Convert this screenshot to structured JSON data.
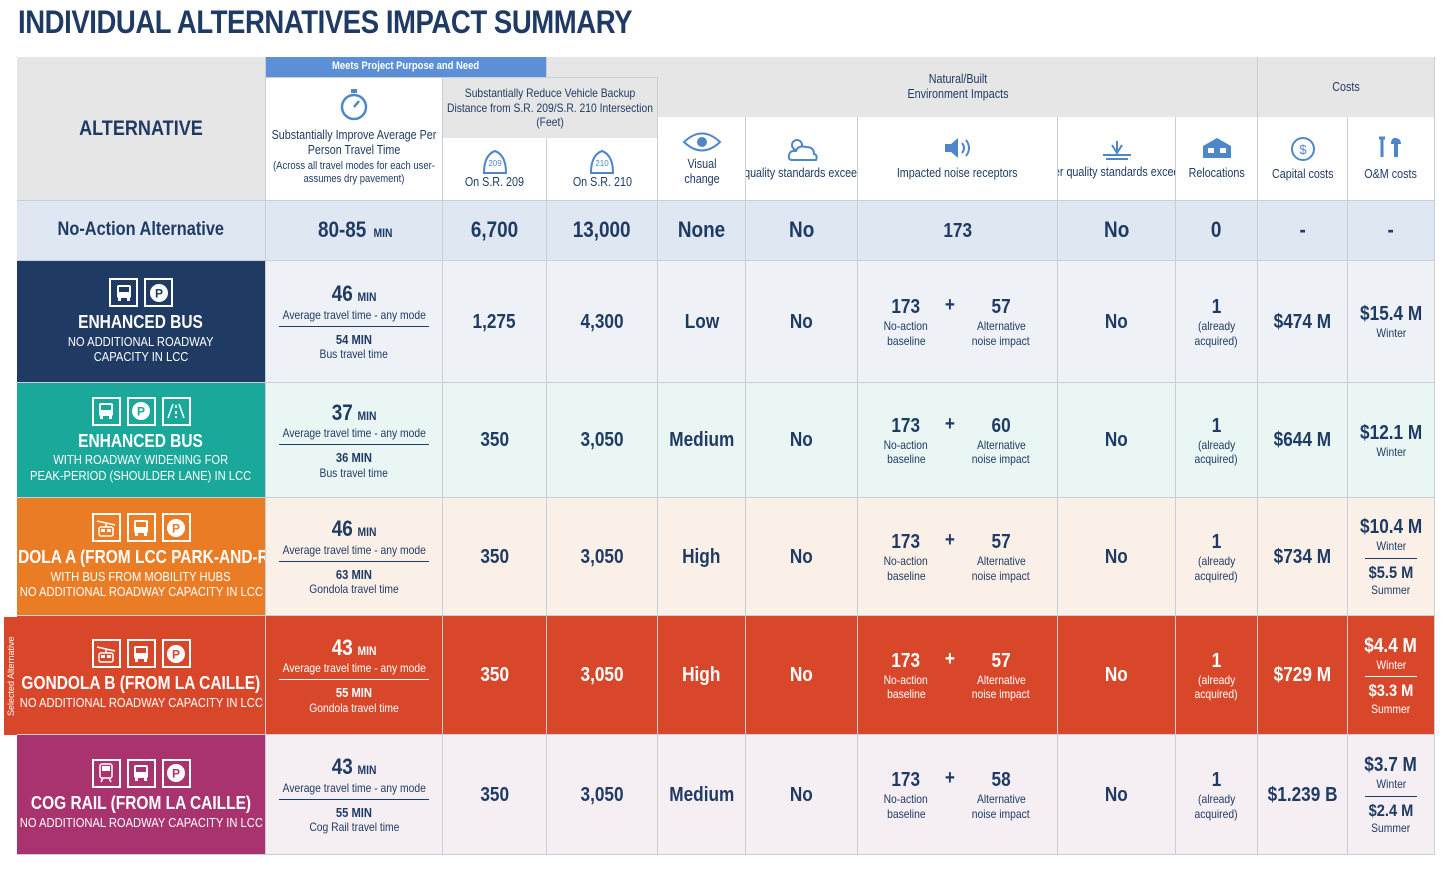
{
  "title": "INDIVIDUAL ALTERNATIVES IMPACT SUMMARY",
  "selected_label": "Selected Alternative",
  "colors": {
    "navy": "#1f3b64",
    "teal": "#1aa89b",
    "orange": "#ea7c26",
    "red": "#d9472a",
    "purple": "#a8336e",
    "noaction": "#dfe7f2",
    "accent": "#4e86c9"
  },
  "headers": {
    "alternative": "ALTERNATIVE",
    "meets": "Meets Project Purpose and Need",
    "travel_title": "Substantially Improve Average Per Person Travel Time",
    "travel_note": "(Across all travel modes for each user-assumes dry pavement)",
    "backup": "Substantially Reduce Vehicle Backup Distance from S.R. 209/S.R. 210 Intersection (Feet)",
    "sr209": "On S.R. 209",
    "sr210": "On S.R. 210",
    "shield209": "209",
    "shield210": "210",
    "natural": "Natural/Built Environment Impacts",
    "visual": "Visual change",
    "air": "Air quality standards exceeded",
    "noise": "Impacted noise receptors",
    "water": "Water quality standards exceeded",
    "reloc": "Relocations",
    "costs": "Costs",
    "capital": "Capital costs",
    "om": "O&M costs",
    "dollar": "$"
  },
  "noaction": {
    "name": "No-Action Alternative",
    "travel": "80-85",
    "unit": "MIN",
    "sr209": "6,700",
    "sr210": "13,000",
    "visual": "None",
    "air": "No",
    "noise": "173",
    "water": "No",
    "reloc": "0",
    "capital": "-",
    "om": "-"
  },
  "rows": [
    {
      "title": "ENHANCED BUS",
      "sub1": "NO ADDITIONAL ROADWAY",
      "sub2": "CAPACITY IN LCC",
      "travel": "46",
      "unit": "MIN",
      "travel_lbl": "Average travel time - any mode",
      "mode_time": "54 MIN",
      "mode_lbl": "Bus travel time",
      "sr209": "1,275",
      "sr210": "4,300",
      "visual": "Low",
      "air": "No",
      "noise_base": "173",
      "plus": "+",
      "noise_alt": "57",
      "base_lbl1": "No-action",
      "base_lbl2": "baseline",
      "alt_lbl1": "Alternative",
      "alt_lbl2": "noise impact",
      "water": "No",
      "reloc": "1",
      "reloc_lbl1": "(already",
      "reloc_lbl2": "acquired)",
      "capital": "$474 M",
      "om_winter": "$15.4 M",
      "winter_lbl": "Winter",
      "om_summer": "",
      "summer_lbl": ""
    },
    {
      "title": "ENHANCED BUS",
      "sub1": "WITH ROADWAY WIDENING FOR",
      "sub2": "PEAK-PERIOD (SHOULDER LANE) IN LCC",
      "travel": "37",
      "unit": "MIN",
      "travel_lbl": "Average travel time - any mode",
      "mode_time": "36 MIN",
      "mode_lbl": "Bus travel time",
      "sr209": "350",
      "sr210": "3,050",
      "visual": "Medium",
      "air": "No",
      "noise_base": "173",
      "plus": "+",
      "noise_alt": "60",
      "base_lbl1": "No-action",
      "base_lbl2": "baseline",
      "alt_lbl1": "Alternative",
      "alt_lbl2": "noise impact",
      "water": "No",
      "reloc": "1",
      "reloc_lbl1": "(already",
      "reloc_lbl2": "acquired)",
      "capital": "$644 M",
      "om_winter": "$12.1 M",
      "winter_lbl": "Winter",
      "om_summer": "",
      "summer_lbl": ""
    },
    {
      "title": "GONDOLA A (FROM LCC PARK-AND-RIDE)",
      "sub1": "WITH BUS FROM MOBILITY HUBS",
      "sub2": "NO ADDITIONAL ROADWAY CAPACITY IN LCC",
      "travel": "46",
      "unit": "MIN",
      "travel_lbl": "Average travel time - any mode",
      "mode_time": "63 MIN",
      "mode_lbl": "Gondola travel time",
      "sr209": "350",
      "sr210": "3,050",
      "visual": "High",
      "air": "No",
      "noise_base": "173",
      "plus": "+",
      "noise_alt": "57",
      "base_lbl1": "No-action",
      "base_lbl2": "baseline",
      "alt_lbl1": "Alternative",
      "alt_lbl2": "noise impact",
      "water": "No",
      "reloc": "1",
      "reloc_lbl1": "(already",
      "reloc_lbl2": "acquired)",
      "capital": "$734 M",
      "om_winter": "$10.4 M",
      "winter_lbl": "Winter",
      "om_summer": "$5.5 M",
      "summer_lbl": "Summer"
    },
    {
      "title": "GONDOLA B (FROM LA CAILLE)",
      "sub1": "NO ADDITIONAL ROADWAY CAPACITY IN LCC",
      "sub2": "",
      "travel": "43",
      "unit": "MIN",
      "travel_lbl": "Average travel time - any mode",
      "mode_time": "55 MIN",
      "mode_lbl": "Gondola travel time",
      "sr209": "350",
      "sr210": "3,050",
      "visual": "High",
      "air": "No",
      "noise_base": "173",
      "plus": "+",
      "noise_alt": "57",
      "base_lbl1": "No-action",
      "base_lbl2": "baseline",
      "alt_lbl1": "Alternative",
      "alt_lbl2": "noise impact",
      "water": "No",
      "reloc": "1",
      "reloc_lbl1": "(already",
      "reloc_lbl2": "acquired)",
      "capital": "$729 M",
      "om_winter": "$4.4 M",
      "winter_lbl": "Winter",
      "om_summer": "$3.3 M",
      "summer_lbl": "Summer"
    },
    {
      "title": "COG RAIL (FROM LA CAILLE)",
      "sub1": "NO ADDITIONAL ROADWAY CAPACITY IN LCC",
      "sub2": "",
      "travel": "43",
      "unit": "MIN",
      "travel_lbl": "Average travel time - any mode",
      "mode_time": "55 MIN",
      "mode_lbl": "Cog Rail travel time",
      "sr209": "350",
      "sr210": "3,050",
      "visual": "Medium",
      "air": "No",
      "noise_base": "173",
      "plus": "+",
      "noise_alt": "58",
      "base_lbl1": "No-action",
      "base_lbl2": "baseline",
      "alt_lbl1": "Alternative",
      "alt_lbl2": "noise impact",
      "water": "No",
      "reloc": "1",
      "reloc_lbl1": "(already",
      "reloc_lbl2": "acquired)",
      "capital": "$1.239 B",
      "om_winter": "$3.7 M",
      "winter_lbl": "Winter",
      "om_summer": "$2.4 M",
      "summer_lbl": "Summer"
    }
  ],
  "row_styles": [
    {
      "alt_bg": "#1f3b64",
      "cell_bg": "#eef1f5",
      "text": "#1f3b64",
      "icons": [
        "bus-icon",
        "parking-icon"
      ]
    },
    {
      "alt_bg": "#1aa89b",
      "cell_bg": "#eaf6f4",
      "text": "#1f3b64",
      "icons": [
        "bus-icon",
        "parking-icon",
        "shoulder-lane-icon"
      ]
    },
    {
      "alt_bg": "#ea7c26",
      "cell_bg": "#fbf0e8",
      "text": "#1f3b64",
      "icons": [
        "gondola-icon",
        "bus-icon",
        "parking-icon"
      ]
    },
    {
      "alt_bg": "#d9472a",
      "cell_bg": "#d9472a",
      "text": "#ffffff",
      "icons": [
        "gondola-icon",
        "bus-icon",
        "parking-icon"
      ]
    },
    {
      "alt_bg": "#a8336e",
      "cell_bg": "#f5eef3",
      "text": "#1f3b64",
      "icons": [
        "cog-rail-icon",
        "bus-icon",
        "parking-icon"
      ]
    }
  ]
}
